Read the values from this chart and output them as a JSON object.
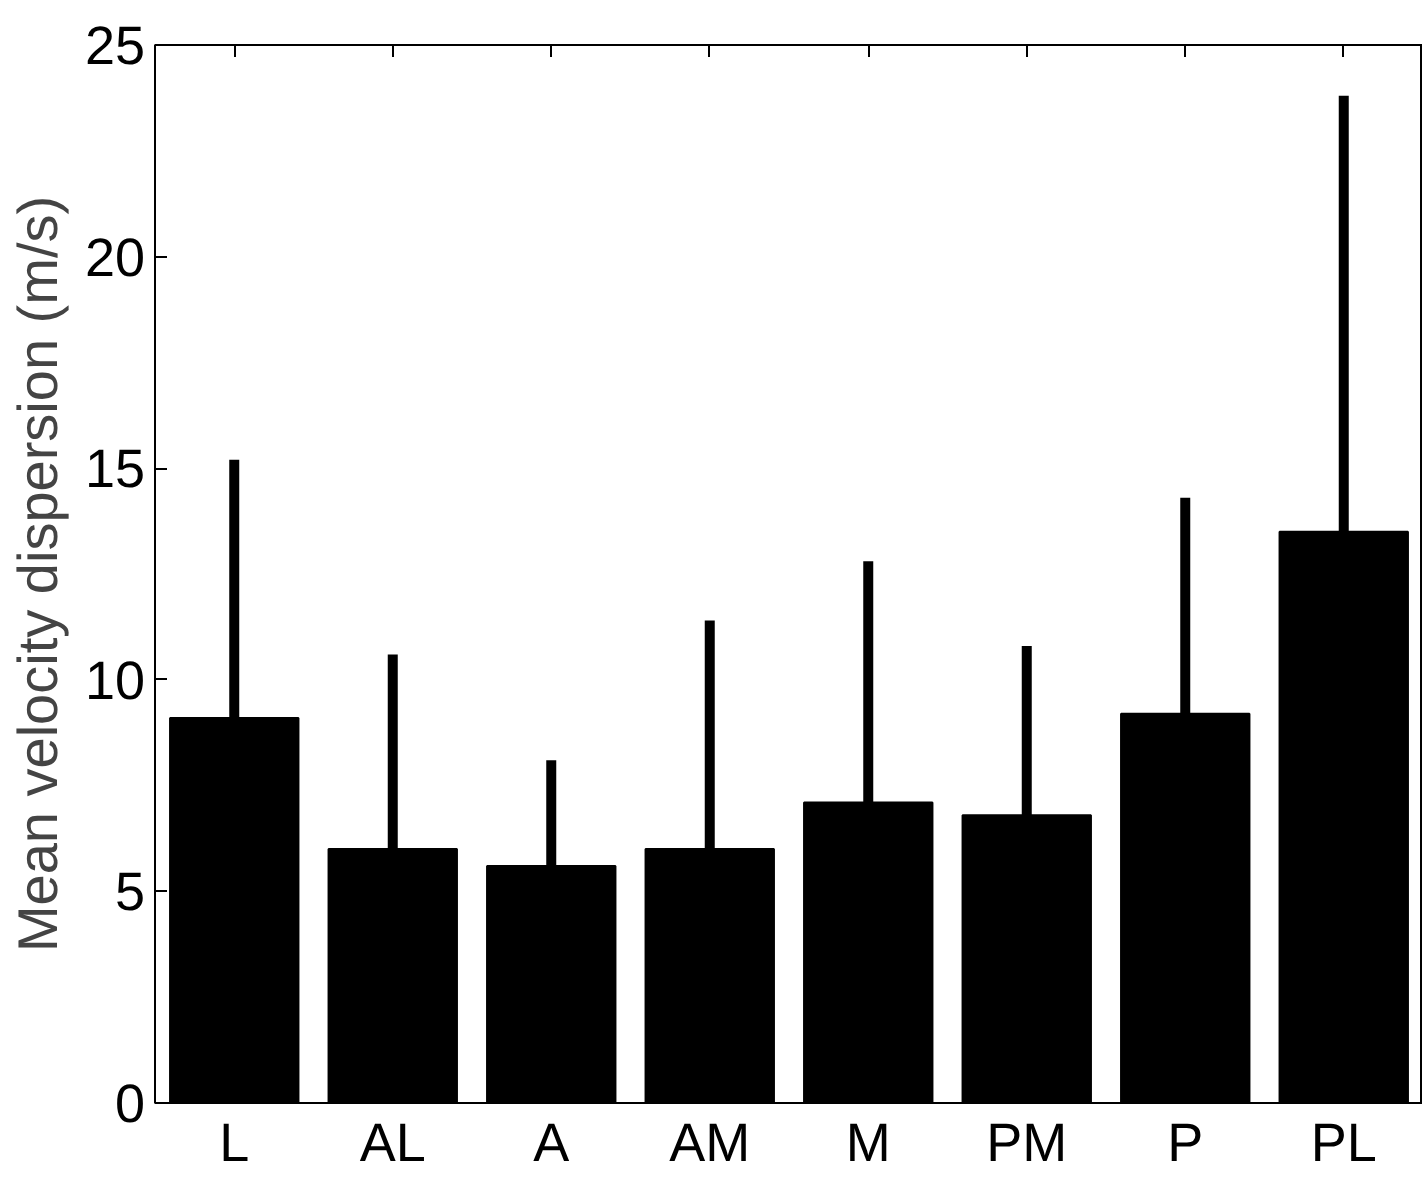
{
  "chart_data": {
    "type": "bar",
    "ylabel": "Mean velocity dispersion (m/s)",
    "categories": [
      "L",
      "AL",
      "A",
      "AM",
      "M",
      "PM",
      "P",
      "PL"
    ],
    "values": [
      9.1,
      6.0,
      5.6,
      6.0,
      7.1,
      6.8,
      9.2,
      13.5
    ],
    "errors": [
      [
        9.1,
        15.2
      ],
      [
        6.0,
        10.6
      ],
      [
        5.6,
        8.1
      ],
      [
        6.0,
        11.4
      ],
      [
        7.1,
        12.8
      ],
      [
        6.8,
        10.8
      ],
      [
        9.2,
        14.3
      ],
      [
        13.5,
        23.8
      ]
    ],
    "color": "#000000",
    "ylim": [
      0,
      25
    ],
    "yticks": [
      0,
      5,
      10,
      15,
      20,
      25
    ],
    "grid": false
  }
}
